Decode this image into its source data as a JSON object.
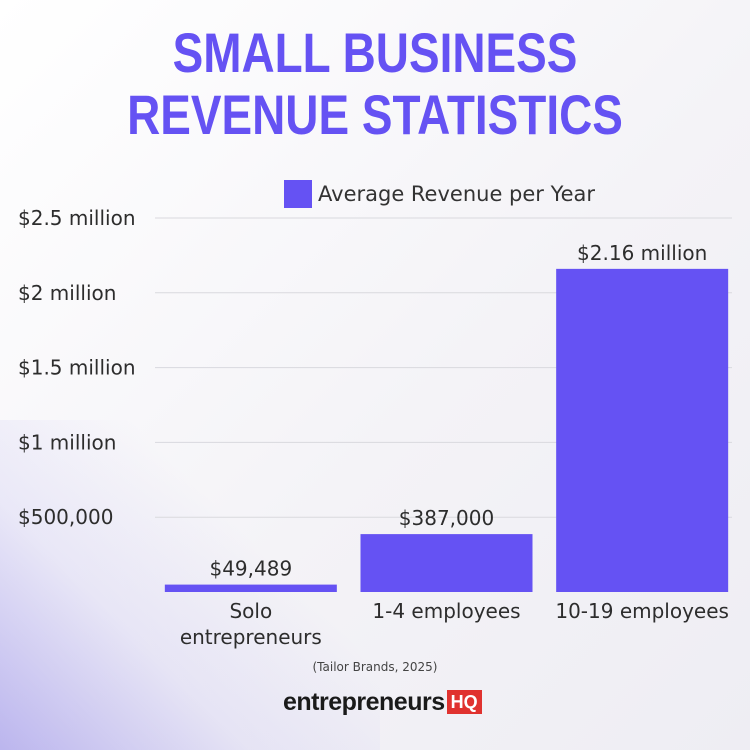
{
  "title_lines": [
    "Small Business",
    "Revenue Statistics"
  ],
  "legend": {
    "label": "Average Revenue per Year",
    "color": "#6552f3"
  },
  "source": "(Tailor Brands, 2025)",
  "logo": {
    "word": "entrepreneurs",
    "badge": "HQ",
    "badge_color": "#e0322f"
  },
  "chart_data": {
    "type": "bar",
    "title": "Small Business Revenue Statistics",
    "categories": [
      "Solo entrepreneurs",
      "1-4 employees",
      "10-19 employees"
    ],
    "category_lines": [
      [
        "Solo",
        "entrepreneurs"
      ],
      [
        "1-4 employees"
      ],
      [
        "10-19 employees"
      ]
    ],
    "series": [
      {
        "name": "Average Revenue per Year",
        "values": [
          49489,
          387000,
          2160000
        ],
        "labels": [
          "$49,489",
          "$387,000",
          "$2.16 million"
        ]
      }
    ],
    "y_ticks": [
      500000,
      1000000,
      1500000,
      2000000,
      2500000
    ],
    "y_tick_labels": [
      "$500,000",
      "$1 million",
      "$1.5 million",
      "$2 million",
      "$2.5 million"
    ],
    "ylim": [
      0,
      2500000
    ],
    "grid": true,
    "legend_position": "top-right",
    "bar_color": "#6552f3"
  }
}
